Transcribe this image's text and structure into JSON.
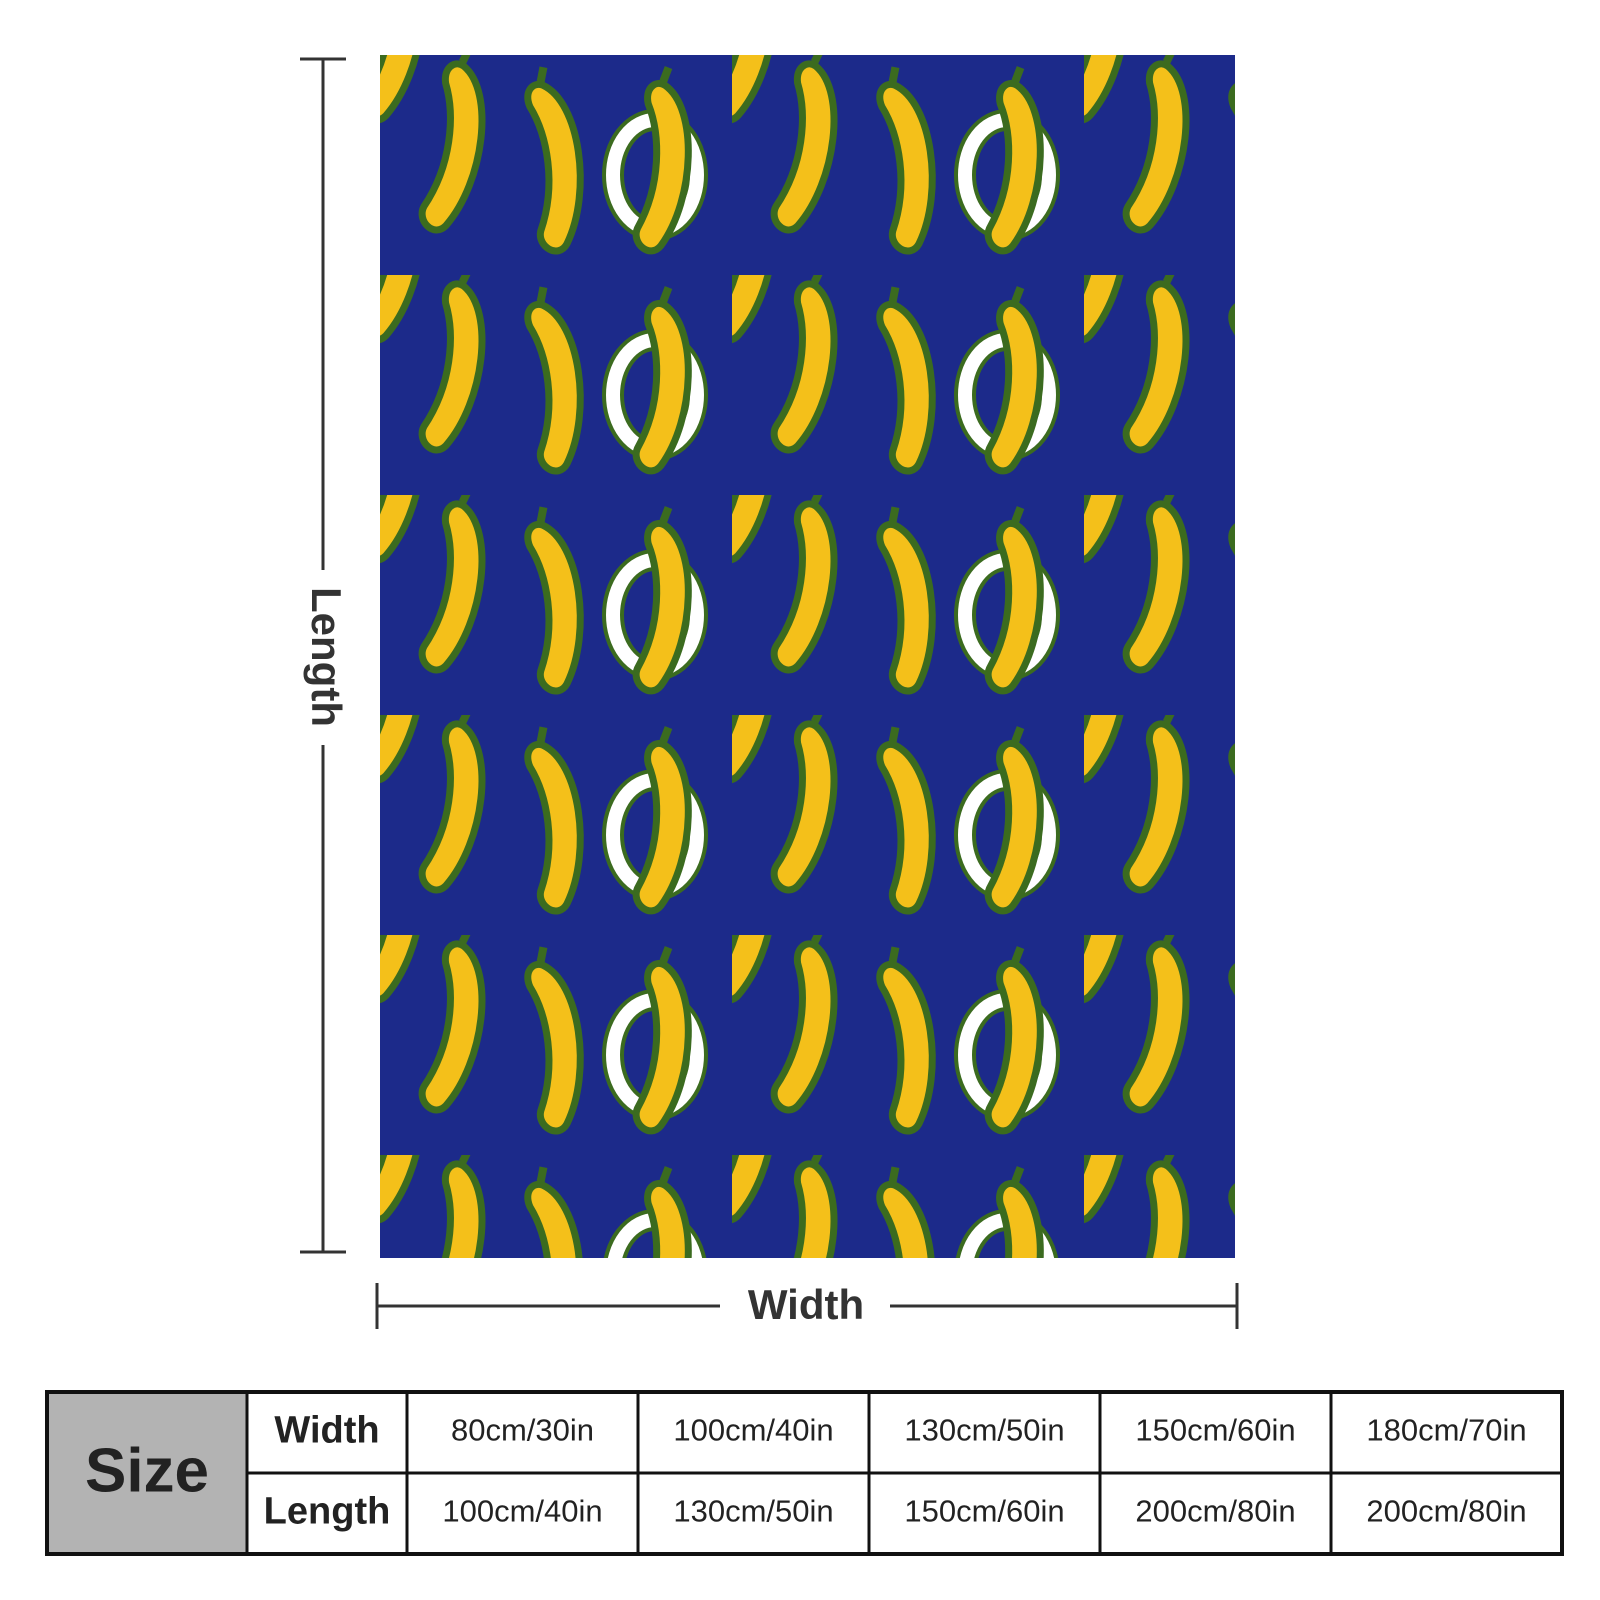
{
  "dimensions": {
    "length_label": "Length",
    "width_label": "Width"
  },
  "table": {
    "header": "Size",
    "rows": [
      {
        "label": "Width",
        "values": [
          "80cm/30in",
          "100cm/40in",
          "130cm/50in",
          "150cm/60in",
          "180cm/70in"
        ]
      },
      {
        "label": "Length",
        "values": [
          "100cm/40in",
          "130cm/50in",
          "150cm/60in",
          "200cm/80in",
          "200cm/80in"
        ]
      }
    ]
  }
}
